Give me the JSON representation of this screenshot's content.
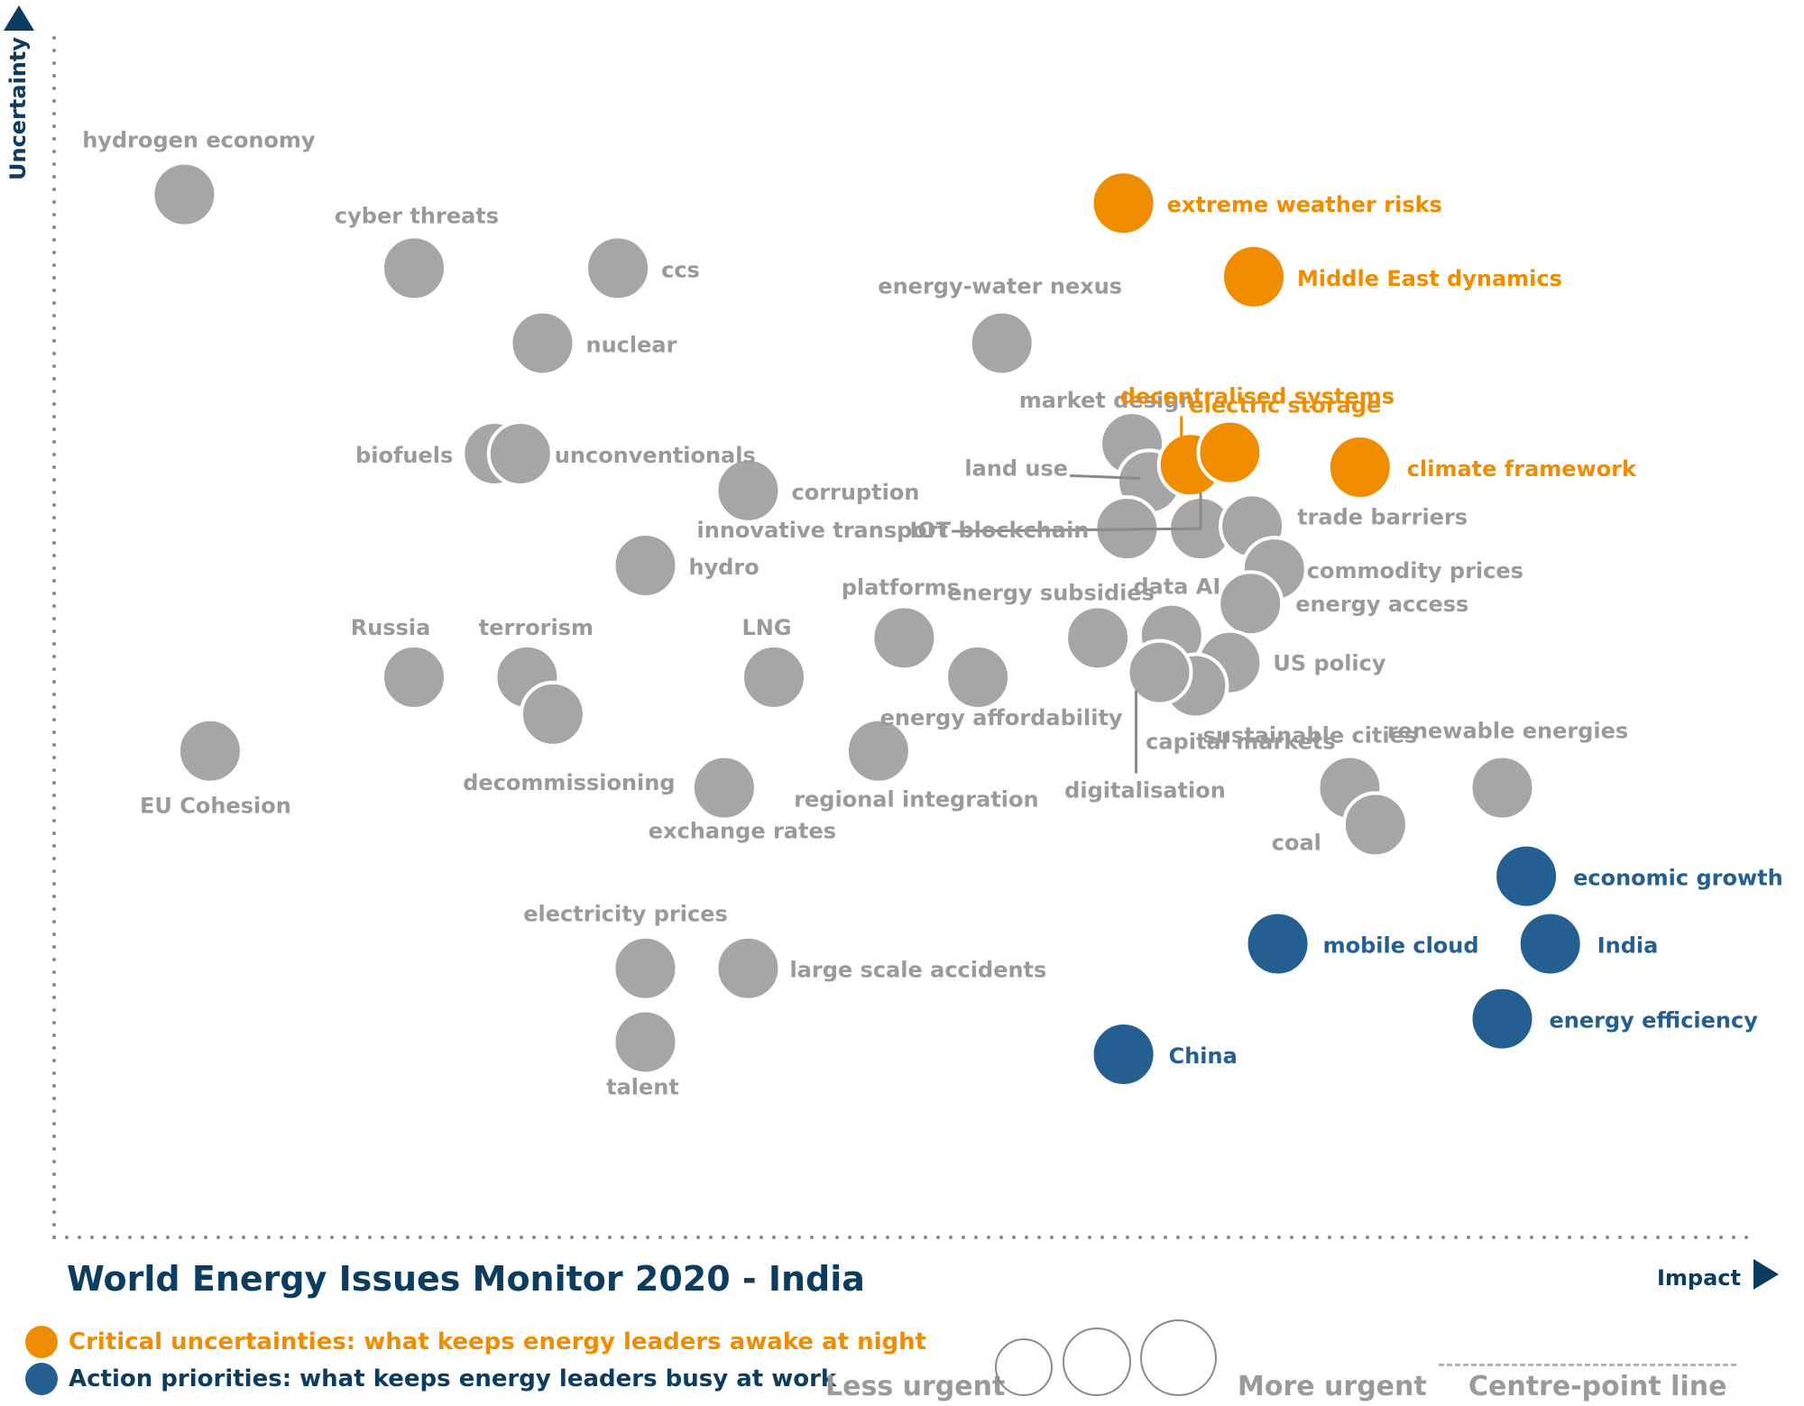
{
  "colors": {
    "grey": "#a6a6a6",
    "orange": "#ef8c00",
    "blue": "#245f92",
    "grey_text": "#9a9a9a",
    "axis": "#0d3c61"
  },
  "chart_data": {
    "type": "scatter",
    "title": "World Energy Issues Monitor 2020 - India",
    "xlabel": "Impact",
    "ylabel": "Uncertainty",
    "x_range": [
      0,
      100
    ],
    "y_range": [
      0,
      100
    ],
    "grid": false,
    "series": [
      {
        "name": "Critical uncertainties: what keeps energy leaders awake at night",
        "category": "orange",
        "points": [
          {
            "label": "extreme weather risks",
            "x": 62.4,
            "y": 84.2
          },
          {
            "label": "Middle East dynamics",
            "x": 70.0,
            "y": 78.2
          },
          {
            "label": "decentralised systems",
            "x": 66.3,
            "y": 62.9
          },
          {
            "label": "electric storage",
            "x": 68.6,
            "y": 63.9
          },
          {
            "label": "climate framework",
            "x": 76.2,
            "y": 62.7
          }
        ]
      },
      {
        "name": "Action priorities: what keeps energy leaders busy at work",
        "category": "blue",
        "points": [
          {
            "label": "economic growth",
            "x": 85.9,
            "y": 29.4
          },
          {
            "label": "mobile cloud",
            "x": 71.4,
            "y": 23.9
          },
          {
            "label": "India",
            "x": 87.3,
            "y": 23.9
          },
          {
            "label": "energy efficiency",
            "x": 84.5,
            "y": 17.8
          },
          {
            "label": "China",
            "x": 62.4,
            "y": 14.9
          }
        ]
      },
      {
        "name": "",
        "category": "grey",
        "points": [
          {
            "label": "hydrogen economy",
            "x": 7.6,
            "y": 84.9
          },
          {
            "label": "cyber threats",
            "x": 21.0,
            "y": 78.9
          },
          {
            "label": "ccs",
            "x": 32.9,
            "y": 78.9
          },
          {
            "label": "nuclear",
            "x": 28.5,
            "y": 72.8
          },
          {
            "label": "energy-water nexus",
            "x": 55.3,
            "y": 72.8
          },
          {
            "label": "biofuels",
            "x": 25.7,
            "y": 63.8
          },
          {
            "label": "unconventionals",
            "x": 27.2,
            "y": 63.8
          },
          {
            "label": "corruption",
            "x": 40.5,
            "y": 60.8
          },
          {
            "label": "market design",
            "x": 62.9,
            "y": 64.6
          },
          {
            "label": "land use",
            "x": 63.9,
            "y": 61.5
          },
          {
            "label": "IOT blockchain",
            "x": 62.6,
            "y": 57.7
          },
          {
            "label": "innovative transport",
            "x": 66.9,
            "y": 57.7
          },
          {
            "label": "trade barriers",
            "x": 69.9,
            "y": 57.9
          },
          {
            "label": "commodity prices",
            "x": 71.2,
            "y": 54.4
          },
          {
            "label": "hydro",
            "x": 34.5,
            "y": 54.7
          },
          {
            "label": "energy access",
            "x": 69.8,
            "y": 51.6
          },
          {
            "label": "platforms",
            "x": 49.6,
            "y": 48.8
          },
          {
            "label": "energy subsidies",
            "x": 60.9,
            "y": 48.8
          },
          {
            "label": "data AI",
            "x": 65.2,
            "y": 49.0
          },
          {
            "label": "US policy",
            "x": 68.6,
            "y": 46.8
          },
          {
            "label": "capital markets",
            "x": 66.6,
            "y": 44.9
          },
          {
            "label": "digitalisation",
            "x": 64.5,
            "y": 46.0
          },
          {
            "label": "Russia",
            "x": 21.0,
            "y": 45.6
          },
          {
            "label": "terrorism",
            "x": 27.6,
            "y": 45.6
          },
          {
            "label": "decommissioning",
            "x": 29.1,
            "y": 42.6
          },
          {
            "label": "LNG",
            "x": 42.0,
            "y": 45.6
          },
          {
            "label": "energy affordability",
            "x": 53.9,
            "y": 45.6
          },
          {
            "label": "EU Cohesion",
            "x": 9.1,
            "y": 39.6
          },
          {
            "label": "regional integration",
            "x": 48.1,
            "y": 39.6
          },
          {
            "label": "exchange rates",
            "x": 39.1,
            "y": 36.6
          },
          {
            "label": "sustainable cities",
            "x": 75.6,
            "y": 36.6
          },
          {
            "label": "coal",
            "x": 77.1,
            "y": 33.6
          },
          {
            "label": "renewable energies",
            "x": 84.5,
            "y": 36.6
          },
          {
            "label": "electricity prices",
            "x": 34.5,
            "y": 21.9
          },
          {
            "label": "large scale accidents",
            "x": 40.5,
            "y": 21.9
          },
          {
            "label": "talent",
            "x": 34.5,
            "y": 15.9
          }
        ]
      }
    ]
  },
  "axis": {
    "x_label": "Impact",
    "y_label": "Uncertainty"
  },
  "title": "World Energy Issues Monitor 2020 - India",
  "legend": {
    "critical": "Critical uncertainties: what keeps energy leaders awake at night",
    "priorities": "Action priorities: what keeps energy leaders busy at work",
    "less_urgent": "Less urgent",
    "more_urgent": "More urgent",
    "centre_point": "Centre-point  line"
  }
}
